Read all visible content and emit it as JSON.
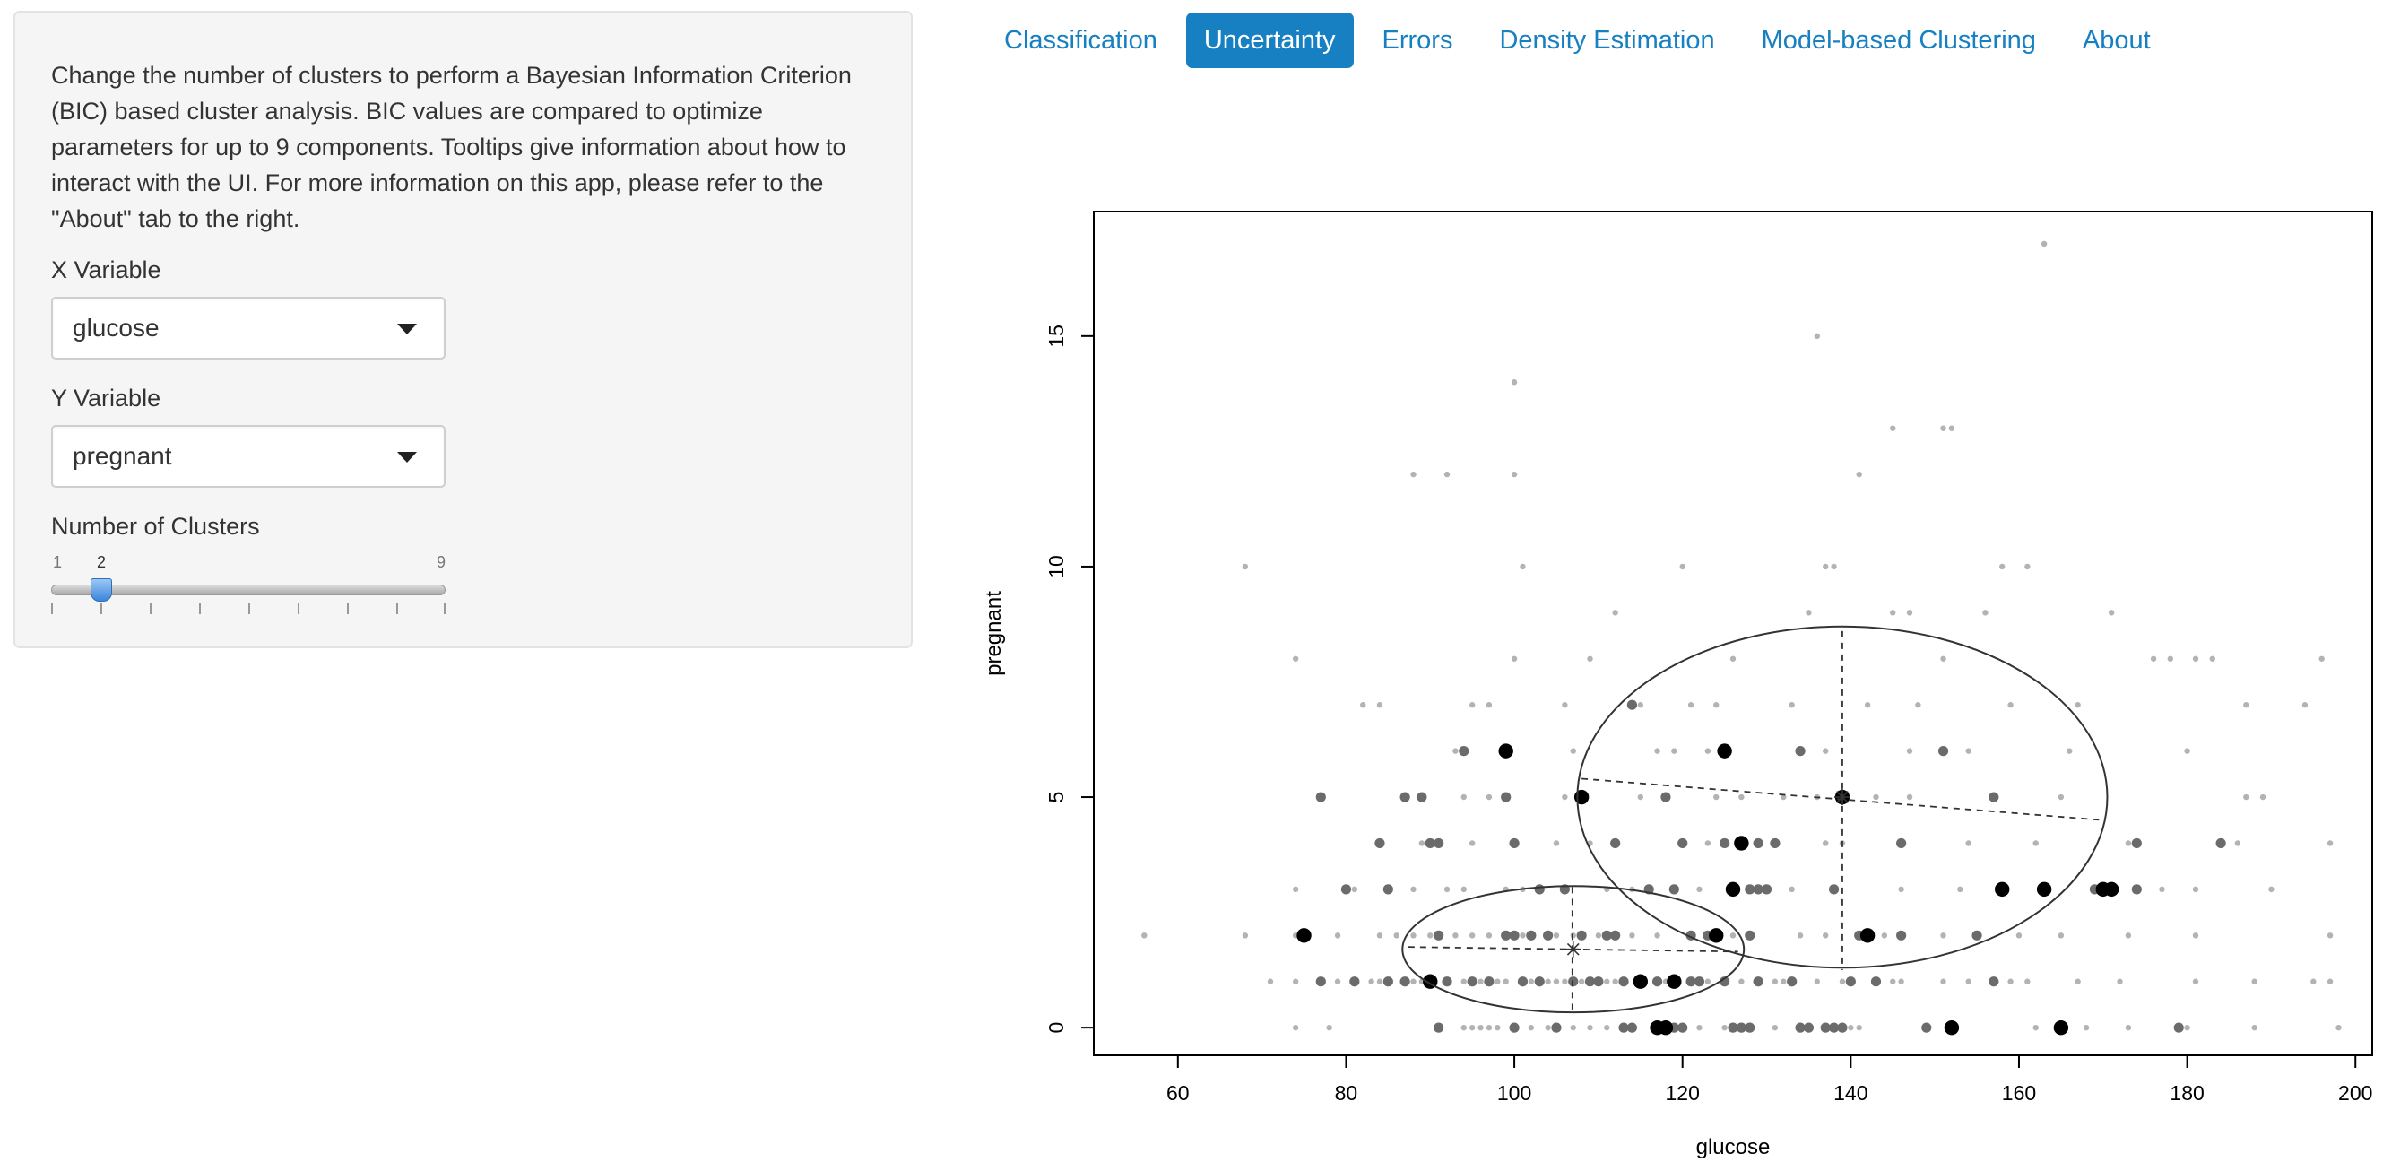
{
  "sidebar": {
    "description": "Change the number of clusters to perform a Bayesian Information Criterion (BIC) based cluster analysis. BIC values are compared to optimize parameters for up to 9 components. Tooltips give information about how to interact with the UI. For more information on this app, please refer to the \"About\" tab to the right.",
    "x_label": "X Variable",
    "x_value": "glucose",
    "y_label": "Y Variable",
    "y_value": "pregnant",
    "clusters_label": "Number of Clusters",
    "slider": {
      "min": "1",
      "max": "9",
      "value": "2"
    }
  },
  "tabs": [
    {
      "label": "Classification"
    },
    {
      "label": "Uncertainty"
    },
    {
      "label": "Errors"
    },
    {
      "label": "Density Estimation"
    },
    {
      "label": "Model-based Clustering"
    },
    {
      "label": "About"
    }
  ],
  "active_tab": "Uncertainty",
  "colors": {
    "accent": "#1780c2",
    "high": "#000000",
    "mid": "#6b6b6b",
    "low": "#b3b3b3"
  },
  "chart_data": {
    "type": "scatter",
    "xlabel": "glucose",
    "ylabel": "pregnant",
    "xlim": [
      50,
      202
    ],
    "ylim": [
      -0.6,
      17.7
    ],
    "xticks": [
      "60",
      "80",
      "100",
      "120",
      "140",
      "160",
      "180",
      "200"
    ],
    "yticks": [
      "0",
      "5",
      "10",
      "15"
    ],
    "grid": false,
    "series": [
      {
        "level": "high",
        "points": [
          [
            99,
            6
          ],
          [
            125,
            6
          ],
          [
            108,
            5
          ],
          [
            139,
            5
          ],
          [
            127,
            4
          ],
          [
            126,
            3
          ],
          [
            158,
            3
          ],
          [
            163,
            3
          ],
          [
            170,
            3
          ],
          [
            171,
            3
          ],
          [
            75,
            2
          ],
          [
            124,
            2
          ],
          [
            142,
            2
          ],
          [
            90,
            1
          ],
          [
            115,
            1
          ],
          [
            119,
            1
          ],
          [
            117,
            0
          ],
          [
            118,
            0
          ],
          [
            152,
            0
          ],
          [
            165,
            0
          ]
        ]
      },
      {
        "level": "mid",
        "points": [
          [
            114,
            7
          ],
          [
            94,
            6
          ],
          [
            134,
            6
          ],
          [
            151,
            6
          ],
          [
            77,
            5
          ],
          [
            87,
            5
          ],
          [
            89,
            5
          ],
          [
            99,
            5
          ],
          [
            118,
            5
          ],
          [
            157,
            5
          ],
          [
            84,
            4
          ],
          [
            90,
            4
          ],
          [
            91,
            4
          ],
          [
            100,
            4
          ],
          [
            112,
            4
          ],
          [
            120,
            4
          ],
          [
            125,
            4
          ],
          [
            129,
            4
          ],
          [
            131,
            4
          ],
          [
            146,
            4
          ],
          [
            174,
            4
          ],
          [
            184,
            4
          ],
          [
            80,
            3
          ],
          [
            85,
            3
          ],
          [
            103,
            3
          ],
          [
            106,
            3
          ],
          [
            116,
            3
          ],
          [
            119,
            3
          ],
          [
            128,
            3
          ],
          [
            129,
            3
          ],
          [
            130,
            3
          ],
          [
            138,
            3
          ],
          [
            169,
            3
          ],
          [
            174,
            3
          ],
          [
            91,
            2
          ],
          [
            99,
            2
          ],
          [
            100,
            2
          ],
          [
            102,
            2
          ],
          [
            104,
            2
          ],
          [
            108,
            2
          ],
          [
            111,
            2
          ],
          [
            112,
            2
          ],
          [
            121,
            2
          ],
          [
            123,
            2
          ],
          [
            128,
            2
          ],
          [
            141,
            2
          ],
          [
            146,
            2
          ],
          [
            155,
            2
          ],
          [
            77,
            1
          ],
          [
            81,
            1
          ],
          [
            85,
            1
          ],
          [
            87,
            1
          ],
          [
            92,
            1
          ],
          [
            95,
            1
          ],
          [
            97,
            1
          ],
          [
            101,
            1
          ],
          [
            103,
            1
          ],
          [
            107,
            1
          ],
          [
            109,
            1
          ],
          [
            110,
            1
          ],
          [
            113,
            1
          ],
          [
            117,
            1
          ],
          [
            121,
            1
          ],
          [
            122,
            1
          ],
          [
            125,
            1
          ],
          [
            129,
            1
          ],
          [
            133,
            1
          ],
          [
            140,
            1
          ],
          [
            143,
            1
          ],
          [
            157,
            1
          ],
          [
            91,
            0
          ],
          [
            100,
            0
          ],
          [
            105,
            0
          ],
          [
            113,
            0
          ],
          [
            114,
            0
          ],
          [
            119,
            0
          ],
          [
            120,
            0
          ],
          [
            126,
            0
          ],
          [
            127,
            0
          ],
          [
            128,
            0
          ],
          [
            134,
            0
          ],
          [
            135,
            0
          ],
          [
            137,
            0
          ],
          [
            138,
            0
          ],
          [
            139,
            0
          ],
          [
            149,
            0
          ],
          [
            179,
            0
          ]
        ]
      },
      {
        "level": "low",
        "points": [
          [
            163,
            17
          ],
          [
            136,
            15
          ],
          [
            100,
            14
          ],
          [
            145,
            13
          ],
          [
            151,
            13
          ],
          [
            152,
            13
          ],
          [
            88,
            12
          ],
          [
            92,
            12
          ],
          [
            100,
            12
          ],
          [
            141,
            12
          ],
          [
            101,
            10
          ],
          [
            68,
            10
          ],
          [
            120,
            10
          ],
          [
            137,
            10
          ],
          [
            138,
            10
          ],
          [
            158,
            10
          ],
          [
            161,
            10
          ],
          [
            112,
            9
          ],
          [
            135,
            9
          ],
          [
            145,
            9
          ],
          [
            147,
            9
          ],
          [
            156,
            9
          ],
          [
            171,
            9
          ],
          [
            74,
            8
          ],
          [
            100,
            8
          ],
          [
            109,
            8
          ],
          [
            126,
            8
          ],
          [
            151,
            8
          ],
          [
            176,
            8
          ],
          [
            178,
            8
          ],
          [
            181,
            8
          ],
          [
            183,
            8
          ],
          [
            196,
            8
          ],
          [
            82,
            7
          ],
          [
            84,
            7
          ],
          [
            95,
            7
          ],
          [
            97,
            7
          ],
          [
            106,
            7
          ],
          [
            115,
            7
          ],
          [
            121,
            7
          ],
          [
            124,
            7
          ],
          [
            133,
            7
          ],
          [
            142,
            7
          ],
          [
            148,
            7
          ],
          [
            159,
            7
          ],
          [
            167,
            7
          ],
          [
            187,
            7
          ],
          [
            194,
            7
          ],
          [
            93,
            6
          ],
          [
            107,
            6
          ],
          [
            117,
            6
          ],
          [
            119,
            6
          ],
          [
            123,
            6
          ],
          [
            137,
            6
          ],
          [
            147,
            6
          ],
          [
            154,
            6
          ],
          [
            166,
            6
          ],
          [
            180,
            6
          ],
          [
            94,
            5
          ],
          [
            97,
            5
          ],
          [
            106,
            5
          ],
          [
            115,
            5
          ],
          [
            124,
            5
          ],
          [
            127,
            5
          ],
          [
            132,
            5
          ],
          [
            136,
            5
          ],
          [
            143,
            5
          ],
          [
            147,
            5
          ],
          [
            165,
            5
          ],
          [
            187,
            5
          ],
          [
            189,
            5
          ],
          [
            89,
            4
          ],
          [
            95,
            4
          ],
          [
            105,
            4
          ],
          [
            109,
            4
          ],
          [
            123,
            4
          ],
          [
            131,
            4
          ],
          [
            137,
            4
          ],
          [
            139,
            4
          ],
          [
            154,
            4
          ],
          [
            162,
            4
          ],
          [
            173,
            4
          ],
          [
            186,
            4
          ],
          [
            197,
            4
          ],
          [
            74,
            3
          ],
          [
            81,
            3
          ],
          [
            88,
            3
          ],
          [
            92,
            3
          ],
          [
            94,
            3
          ],
          [
            99,
            3
          ],
          [
            101,
            3
          ],
          [
            111,
            3
          ],
          [
            114,
            3
          ],
          [
            122,
            3
          ],
          [
            133,
            3
          ],
          [
            146,
            3
          ],
          [
            153,
            3
          ],
          [
            177,
            3
          ],
          [
            181,
            3
          ],
          [
            190,
            3
          ],
          [
            56,
            2
          ],
          [
            68,
            2
          ],
          [
            74,
            2
          ],
          [
            79,
            2
          ],
          [
            84,
            2
          ],
          [
            86,
            2
          ],
          [
            88,
            2
          ],
          [
            90,
            2
          ],
          [
            93,
            2
          ],
          [
            95,
            2
          ],
          [
            97,
            2
          ],
          [
            101,
            2
          ],
          [
            105,
            2
          ],
          [
            107,
            2
          ],
          [
            110,
            2
          ],
          [
            114,
            2
          ],
          [
            117,
            2
          ],
          [
            126,
            2
          ],
          [
            134,
            2
          ],
          [
            137,
            2
          ],
          [
            144,
            2
          ],
          [
            151,
            2
          ],
          [
            160,
            2
          ],
          [
            165,
            2
          ],
          [
            173,
            2
          ],
          [
            181,
            2
          ],
          [
            197,
            2
          ],
          [
            71,
            1
          ],
          [
            74,
            1
          ],
          [
            79,
            1
          ],
          [
            83,
            1
          ],
          [
            84,
            1
          ],
          [
            88,
            1
          ],
          [
            89,
            1
          ],
          [
            94,
            1
          ],
          [
            96,
            1
          ],
          [
            98,
            1
          ],
          [
            99,
            1
          ],
          [
            102,
            1
          ],
          [
            104,
            1
          ],
          [
            105,
            1
          ],
          [
            106,
            1
          ],
          [
            108,
            1
          ],
          [
            111,
            1
          ],
          [
            112,
            1
          ],
          [
            118,
            1
          ],
          [
            123,
            1
          ],
          [
            127,
            1
          ],
          [
            131,
            1
          ],
          [
            132,
            1
          ],
          [
            136,
            1
          ],
          [
            139,
            1
          ],
          [
            145,
            1
          ],
          [
            146,
            1
          ],
          [
            151,
            1
          ],
          [
            154,
            1
          ],
          [
            159,
            1
          ],
          [
            161,
            1
          ],
          [
            167,
            1
          ],
          [
            172,
            1
          ],
          [
            181,
            1
          ],
          [
            188,
            1
          ],
          [
            195,
            1
          ],
          [
            197,
            1
          ],
          [
            74,
            0
          ],
          [
            78,
            0
          ],
          [
            94,
            0
          ],
          [
            95,
            0
          ],
          [
            96,
            0
          ],
          [
            97,
            0
          ],
          [
            98,
            0
          ],
          [
            102,
            0
          ],
          [
            104,
            0
          ],
          [
            107,
            0
          ],
          [
            109,
            0
          ],
          [
            111,
            0
          ],
          [
            122,
            0
          ],
          [
            125,
            0
          ],
          [
            131,
            0
          ],
          [
            140,
            0
          ],
          [
            141,
            0
          ],
          [
            162,
            0
          ],
          [
            168,
            0
          ],
          [
            173,
            0
          ],
          [
            180,
            0
          ],
          [
            188,
            0
          ],
          [
            198,
            0
          ]
        ]
      }
    ],
    "ellipses": [
      {
        "center": [
          107,
          1.7
        ],
        "semi_x": 20.3,
        "semi_y": 1.37,
        "axis_x": [
          [
            87.4,
            1.75
          ],
          [
            126.6,
            1.65
          ]
        ],
        "axis_y": [
          [
            106.9,
            3.05
          ],
          [
            106.9,
            0.33
          ]
        ]
      },
      {
        "center": [
          139,
          5.0
        ],
        "semi_x": 31.5,
        "semi_y": 3.7,
        "axis_x": [
          [
            108,
            5.4
          ],
          [
            170,
            4.5
          ]
        ],
        "axis_y": [
          [
            139,
            8.6
          ],
          [
            139,
            1.25
          ]
        ]
      }
    ]
  }
}
